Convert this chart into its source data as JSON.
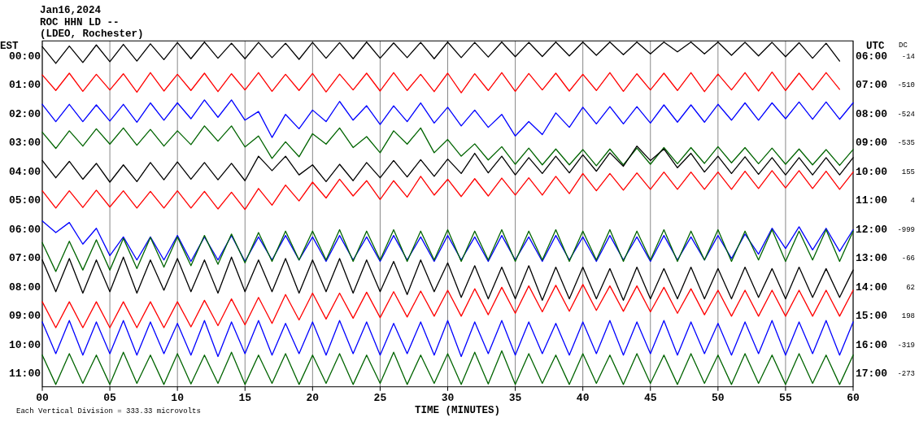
{
  "chart_data": {
    "type": "line",
    "title": "Jan16,2024",
    "subtitle": "ROC HHN LD --\n(LDEO, Rochester)",
    "xlabel": "TIME (MINUTES)",
    "ylabel": "EST",
    "y2label": "UTC",
    "annotations": [
      "Each Vertical Division =  333.33 microvolts",
      "DC",
      "-14",
      "-510",
      "-524",
      "-535",
      "155",
      "4",
      "-999",
      "-66",
      "62",
      "198",
      "-319",
      "-273"
    ],
    "grid": "x",
    "xlim": [
      0,
      60
    ],
    "xticks": [
      {
        "value": 0,
        "label": "00"
      },
      {
        "value": 5,
        "label": "05"
      },
      10,
      15,
      20,
      25,
      30,
      35,
      40,
      45,
      50,
      55,
      60
    ],
    "ylim": [
      11.5,
      -0.5
    ],
    "yticks": [
      {
        "value": 0,
        "label": "00:00"
      },
      {
        "value": 1,
        "label": "01:00"
      },
      {
        "value": 2,
        "label": "02:00"
      },
      {
        "value": 3,
        "label": "03:00"
      },
      {
        "value": 4,
        "label": "04:00"
      },
      {
        "value": 5,
        "label": "05:00"
      },
      {
        "value": 6,
        "label": "06:00"
      },
      {
        "value": 7,
        "label": "07:00"
      },
      {
        "value": 8,
        "label": "08:00"
      },
      {
        "value": 9,
        "label": "09:00"
      },
      {
        "value": 10,
        "label": "10:00"
      },
      {
        "value": 11,
        "label": "11:00"
      }
    ],
    "y2lim": [
      17.5,
      5.5
    ],
    "y2ticks": [
      {
        "value": 6,
        "label": "06:00"
      },
      {
        "value": 7,
        "label": "07:00"
      },
      {
        "value": 8,
        "label": "08:00"
      },
      {
        "value": 9,
        "label": "09:00"
      },
      {
        "value": 10,
        "label": "10:00"
      },
      {
        "value": 11,
        "label": "11:00"
      },
      {
        "value": 12,
        "label": "12:00"
      },
      {
        "value": 13,
        "label": "13:00"
      },
      {
        "value": 14,
        "label": "14:00"
      },
      {
        "value": 15,
        "label": "15:00"
      },
      {
        "value": 16,
        "label": "16:00"
      },
      {
        "value": 17,
        "label": "17:00"
      }
    ],
    "x": [
      0,
      1,
      2,
      3,
      4,
      5,
      6,
      7,
      8,
      9,
      10,
      11,
      12,
      13,
      14,
      15,
      16,
      17,
      18,
      19,
      20,
      21,
      22,
      23,
      24,
      25,
      26,
      27,
      28,
      29,
      30,
      31,
      32,
      33,
      34,
      35,
      36,
      37,
      38,
      39,
      40,
      41,
      42,
      43,
      44,
      45,
      46,
      47,
      48,
      49,
      50,
      51,
      52,
      53,
      54,
      55,
      56,
      57,
      58,
      59,
      60
    ],
    "series": [
      {
        "color": "#000000",
        "values": [
          -0.3,
          0.28,
          -0.32,
          0.25,
          -0.36,
          0.22,
          -0.38,
          0.2,
          -0.4,
          0.15,
          -0.44,
          0.12,
          -0.46,
          0.1,
          -0.42,
          0.12,
          -0.45,
          0.08,
          -0.42,
          0.14,
          -0.45,
          0.1,
          -0.44,
          0.12,
          -0.46,
          0.1,
          -0.43,
          0.08,
          -0.45,
          0.12,
          -0.46,
          0.08,
          -0.45,
          0.06,
          -0.46,
          0.05,
          -0.45,
          0.04,
          -0.46,
          0.02,
          -0.46,
          0.0,
          -0.46,
          -0.02,
          -0.46,
          -0.05,
          -0.46,
          -0.12,
          -0.46,
          -0.05,
          -0.46,
          0.0,
          -0.45,
          0.02,
          -0.45,
          0.05,
          -0.44,
          0.1,
          -0.42,
          0.2,
          null
        ]
      },
      {
        "color": "#ff0000",
        "values": [
          0.68,
          1.22,
          0.62,
          1.25,
          0.66,
          1.2,
          0.64,
          1.28,
          0.6,
          1.24,
          0.66,
          1.22,
          0.62,
          1.26,
          0.64,
          1.2,
          0.6,
          1.25,
          0.66,
          1.22,
          0.63,
          1.27,
          0.65,
          1.2,
          0.62,
          1.24,
          0.6,
          1.22,
          0.66,
          1.26,
          0.62,
          1.3,
          0.64,
          1.22,
          0.6,
          1.25,
          0.63,
          1.2,
          0.62,
          1.24,
          0.66,
          1.22,
          0.6,
          1.25,
          0.64,
          1.2,
          0.62,
          1.22,
          0.6,
          1.26,
          0.65,
          1.2,
          0.6,
          1.24,
          0.58,
          1.22,
          0.62,
          1.2,
          0.6,
          1.18,
          null
        ]
      },
      {
        "color": "#0000ff",
        "values": [
          1.7,
          2.3,
          1.7,
          2.3,
          1.72,
          2.28,
          1.7,
          2.32,
          1.65,
          2.25,
          1.65,
          2.2,
          1.55,
          2.15,
          1.55,
          2.25,
          1.95,
          2.85,
          2.05,
          2.55,
          1.9,
          2.3,
          1.6,
          2.25,
          1.75,
          2.4,
          1.75,
          2.3,
          1.65,
          2.35,
          1.8,
          2.45,
          1.9,
          2.5,
          2.05,
          2.8,
          2.3,
          2.75,
          2.0,
          2.5,
          1.8,
          2.38,
          1.78,
          2.38,
          1.78,
          2.35,
          1.72,
          2.32,
          1.72,
          2.32,
          1.7,
          2.25,
          1.65,
          2.25,
          1.65,
          2.2,
          1.62,
          2.22,
          1.62,
          2.22,
          1.65
        ]
      },
      {
        "color": "#006400",
        "values": [
          2.67,
          3.23,
          2.62,
          3.15,
          2.55,
          3.08,
          2.52,
          3.12,
          2.57,
          3.15,
          2.62,
          3.1,
          2.45,
          2.98,
          2.45,
          3.18,
          2.8,
          3.58,
          3.0,
          3.52,
          2.72,
          3.08,
          2.52,
          3.2,
          2.82,
          3.38,
          2.62,
          3.08,
          2.52,
          3.38,
          2.92,
          3.5,
          3.07,
          3.63,
          3.17,
          3.78,
          3.22,
          3.8,
          3.25,
          3.8,
          3.27,
          3.83,
          3.25,
          3.8,
          3.22,
          3.78,
          3.2,
          3.76,
          3.2,
          3.75,
          3.17,
          3.73,
          3.2,
          3.76,
          3.22,
          3.78,
          3.25,
          3.8,
          3.27,
          3.82,
          3.27
        ]
      },
      {
        "color": "#000000",
        "values": [
          3.65,
          4.25,
          3.68,
          4.3,
          3.75,
          4.4,
          3.8,
          4.38,
          3.72,
          4.32,
          3.7,
          4.3,
          3.72,
          4.32,
          3.75,
          4.35,
          3.5,
          4.0,
          3.5,
          4.15,
          3.8,
          4.38,
          3.78,
          4.35,
          3.72,
          4.25,
          3.65,
          4.22,
          3.62,
          4.2,
          3.6,
          4.1,
          3.4,
          4.08,
          3.5,
          4.15,
          3.55,
          4.1,
          3.5,
          4.08,
          3.45,
          4.02,
          3.38,
          3.85,
          3.15,
          3.65,
          3.25,
          3.9,
          3.4,
          4.05,
          3.5,
          4.1,
          3.52,
          4.13,
          3.55,
          4.15,
          3.55,
          4.15,
          3.55,
          4.15,
          3.55
        ]
      },
      {
        "color": "#ff0000",
        "values": [
          4.7,
          5.3,
          4.7,
          5.28,
          4.68,
          5.26,
          4.7,
          5.3,
          4.72,
          5.3,
          4.7,
          5.3,
          4.72,
          5.33,
          4.75,
          5.35,
          4.62,
          5.2,
          4.5,
          5.05,
          4.4,
          4.95,
          4.3,
          4.88,
          4.35,
          5.0,
          4.35,
          4.92,
          4.2,
          4.85,
          4.3,
          4.9,
          4.28,
          4.88,
          4.26,
          4.85,
          4.25,
          4.85,
          4.2,
          4.8,
          4.1,
          4.7,
          4.1,
          4.68,
          4.08,
          4.65,
          4.05,
          4.65,
          4.05,
          4.65,
          4.05,
          4.65,
          4.02,
          4.62,
          4.0,
          4.6,
          4.0,
          4.62,
          4.02,
          4.65,
          4.05
        ]
      },
      {
        "color": "#0000ff",
        "values": [
          5.75,
          6.15,
          5.8,
          6.55,
          6.0,
          6.95,
          6.3,
          7.1,
          6.3,
          7.1,
          6.25,
          7.15,
          6.3,
          7.1,
          6.25,
          7.15,
          6.3,
          7.1,
          6.25,
          7.1,
          6.3,
          7.15,
          6.25,
          7.1,
          6.3,
          7.15,
          6.25,
          7.1,
          6.3,
          7.15,
          6.25,
          7.1,
          6.3,
          7.15,
          6.25,
          7.1,
          6.3,
          7.15,
          6.25,
          7.1,
          6.3,
          7.15,
          6.25,
          7.1,
          6.3,
          7.15,
          6.25,
          7.1,
          6.3,
          7.1,
          6.25,
          7.05,
          6.2,
          6.9,
          6.0,
          6.7,
          5.95,
          6.75,
          6.0,
          6.8,
          6.05
        ]
      },
      {
        "color": "#006400",
        "values": [
          6.5,
          7.5,
          6.45,
          7.45,
          6.4,
          7.45,
          6.35,
          7.4,
          6.32,
          7.35,
          6.3,
          7.3,
          6.25,
          7.25,
          6.2,
          7.2,
          6.15,
          7.15,
          6.1,
          7.1,
          6.1,
          7.1,
          6.05,
          7.15,
          6.1,
          7.1,
          6.05,
          7.15,
          6.1,
          7.1,
          6.05,
          7.15,
          6.1,
          7.1,
          6.05,
          7.15,
          6.1,
          7.1,
          6.05,
          7.15,
          6.1,
          7.1,
          6.05,
          7.15,
          6.1,
          7.1,
          6.05,
          7.15,
          6.1,
          7.1,
          6.05,
          7.15,
          6.1,
          7.1,
          6.05,
          7.15,
          6.1,
          7.1,
          6.05,
          7.15,
          6.1
        ]
      },
      {
        "color": "#000000",
        "values": [
          7.1,
          8.2,
          7.05,
          8.25,
          7.1,
          8.2,
          7.0,
          8.25,
          7.1,
          8.15,
          7.05,
          8.2,
          7.1,
          8.25,
          7.0,
          8.2,
          7.1,
          8.2,
          7.05,
          8.25,
          7.1,
          8.2,
          7.05,
          8.25,
          7.1,
          8.2,
          7.15,
          8.3,
          7.1,
          8.2,
          7.2,
          8.4,
          7.3,
          8.45,
          7.35,
          8.45,
          7.3,
          8.5,
          7.35,
          8.45,
          7.35,
          8.45,
          7.4,
          8.5,
          7.35,
          8.45,
          7.4,
          8.45,
          7.35,
          8.45,
          7.4,
          8.45,
          7.35,
          8.4,
          7.4,
          8.45,
          7.35,
          8.4,
          7.4,
          8.4,
          7.45
        ]
      },
      {
        "color": "#ff0000",
        "values": [
          8.55,
          9.45,
          8.55,
          9.45,
          8.55,
          9.45,
          8.55,
          9.45,
          8.55,
          9.45,
          8.55,
          9.42,
          8.5,
          9.38,
          8.45,
          9.35,
          8.4,
          9.3,
          8.3,
          9.18,
          8.25,
          9.15,
          8.25,
          9.12,
          8.22,
          9.1,
          8.2,
          9.08,
          8.18,
          9.05,
          8.15,
          9.05,
          8.1,
          9.0,
          8.05,
          8.95,
          8.0,
          8.9,
          7.98,
          8.88,
          7.95,
          8.85,
          8.0,
          8.88,
          8.0,
          8.9,
          8.05,
          8.95,
          8.1,
          9.0,
          8.15,
          9.05,
          8.15,
          9.05,
          8.15,
          9.05,
          8.15,
          9.05,
          8.15,
          9.05,
          8.15
        ]
      },
      {
        "color": "#0000ff",
        "values": [
          9.25,
          10.35,
          9.2,
          10.4,
          9.25,
          10.35,
          9.2,
          10.4,
          9.25,
          10.35,
          9.3,
          10.4,
          9.2,
          10.45,
          9.25,
          10.35,
          9.2,
          10.4,
          9.3,
          10.35,
          9.25,
          10.4,
          9.2,
          10.35,
          9.25,
          10.4,
          9.3,
          10.35,
          9.25,
          10.4,
          9.2,
          10.45,
          9.25,
          10.35,
          9.2,
          10.4,
          9.25,
          10.35,
          9.3,
          10.4,
          9.25,
          10.35,
          9.2,
          10.4,
          9.25,
          10.35,
          9.2,
          10.4,
          9.25,
          10.35,
          9.3,
          10.4,
          9.25,
          10.35,
          9.2,
          10.4,
          9.25,
          10.35,
          9.2,
          10.4,
          9.25
        ]
      },
      {
        "color": "#006400",
        "values": [
          10.4,
          11.42,
          10.35,
          11.38,
          10.4,
          11.42,
          10.3,
          11.38,
          10.4,
          11.42,
          10.35,
          11.4,
          10.4,
          11.38,
          10.3,
          11.42,
          10.4,
          11.38,
          10.35,
          11.42,
          10.4,
          11.38,
          10.35,
          11.42,
          10.4,
          11.38,
          10.3,
          11.42,
          10.4,
          11.38,
          10.35,
          11.42,
          10.3,
          11.4,
          10.25,
          11.42,
          10.35,
          11.38,
          10.4,
          11.42,
          10.35,
          11.38,
          10.4,
          11.42,
          10.35,
          11.38,
          10.4,
          11.42,
          10.35,
          11.38,
          10.4,
          11.42,
          10.35,
          11.38,
          10.4,
          11.42,
          10.35,
          11.38,
          10.4,
          11.42,
          10.4
        ]
      }
    ]
  }
}
